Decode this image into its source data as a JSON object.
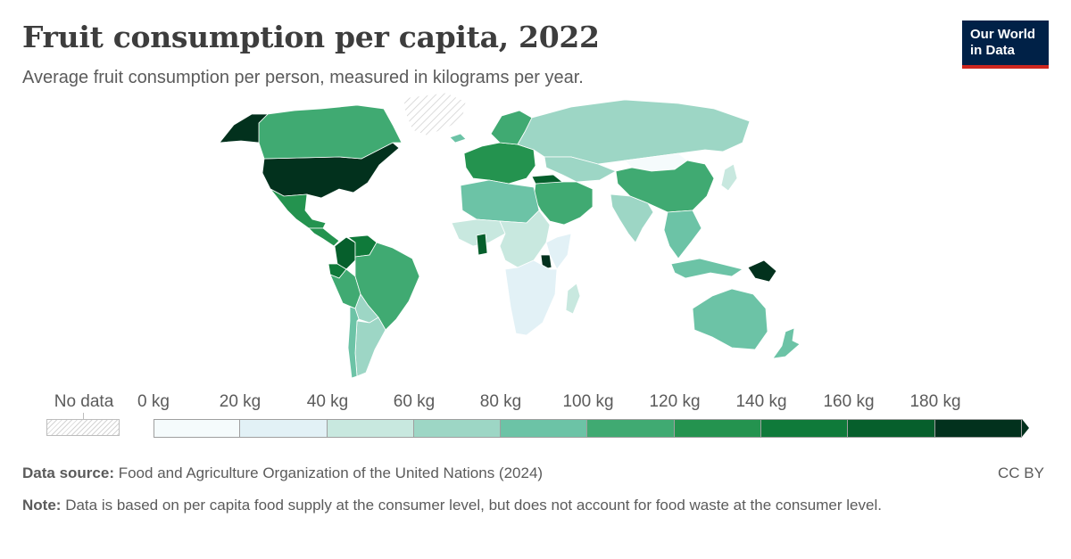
{
  "header": {
    "title": "Fruit consumption per capita, 2022",
    "subtitle": "Average fruit consumption per person, measured in kilograms per year."
  },
  "logo": {
    "line1": "Our World",
    "line2": "in Data"
  },
  "legend": {
    "no_data_label": "No data",
    "tick_labels": [
      "0 kg",
      "20 kg",
      "40 kg",
      "60 kg",
      "80 kg",
      "100 kg",
      "120 kg",
      "140 kg",
      "160 kg",
      "180 kg"
    ],
    "bin_colors": [
      "#f5fbfc",
      "#e2f1f6",
      "#c8e8df",
      "#9dd6c5",
      "#6cc3a6",
      "#40aa72",
      "#24934f",
      "#0f7a3a",
      "#065f2c",
      "#02311d"
    ]
  },
  "regions": [
    {
      "name": "United States",
      "value": 190
    },
    {
      "name": "Canada",
      "value": 115
    },
    {
      "name": "Alaska",
      "value": 190
    },
    {
      "name": "Mexico",
      "value": 125
    },
    {
      "name": "Central America",
      "value": 130
    },
    {
      "name": "Colombia",
      "value": 160
    },
    {
      "name": "Venezuela",
      "value": 140
    },
    {
      "name": "Ecuador",
      "value": 140
    },
    {
      "name": "Peru",
      "value": 115
    },
    {
      "name": "Brazil",
      "value": 105
    },
    {
      "name": "Bolivia",
      "value": 75
    },
    {
      "name": "Argentina",
      "value": 65
    },
    {
      "name": "Chile",
      "value": 80
    },
    {
      "name": "Greenland",
      "value": null
    },
    {
      "name": "Iceland",
      "value": 80
    },
    {
      "name": "Europe",
      "value": 120
    },
    {
      "name": "Scandinavia",
      "value": 105
    },
    {
      "name": "Russia",
      "value": 60
    },
    {
      "name": "Kazakhstan",
      "value": 70
    },
    {
      "name": "Mongolia",
      "value": 15
    },
    {
      "name": "China",
      "value": 110
    },
    {
      "name": "India",
      "value": 60
    },
    {
      "name": "Middle East",
      "value": 100
    },
    {
      "name": "Turkey",
      "value": 175
    },
    {
      "name": "North Africa",
      "value": 95
    },
    {
      "name": "West Africa",
      "value": 40
    },
    {
      "name": "Ghana",
      "value": 170
    },
    {
      "name": "Central Africa",
      "value": 55
    },
    {
      "name": "Uganda",
      "value": 180
    },
    {
      "name": "East Africa",
      "value": 25
    },
    {
      "name": "Southern Africa",
      "value": 35
    },
    {
      "name": "Madagascar",
      "value": 45
    },
    {
      "name": "Southeast Asia",
      "value": 85
    },
    {
      "name": "Indonesia",
      "value": 80
    },
    {
      "name": "Papua New Guinea",
      "value": 190
    },
    {
      "name": "Japan",
      "value": 45
    },
    {
      "name": "Australia",
      "value": 80
    },
    {
      "name": "New Zealand",
      "value": 95
    }
  ],
  "footer": {
    "source_label": "Data source:",
    "source_text": "Food and Agriculture Organization of the United Nations (2024)",
    "license": "CC BY",
    "note_label": "Note:",
    "note_text": "Data is based on per capita food supply at the consumer level, but does not account for food waste at the consumer level."
  }
}
